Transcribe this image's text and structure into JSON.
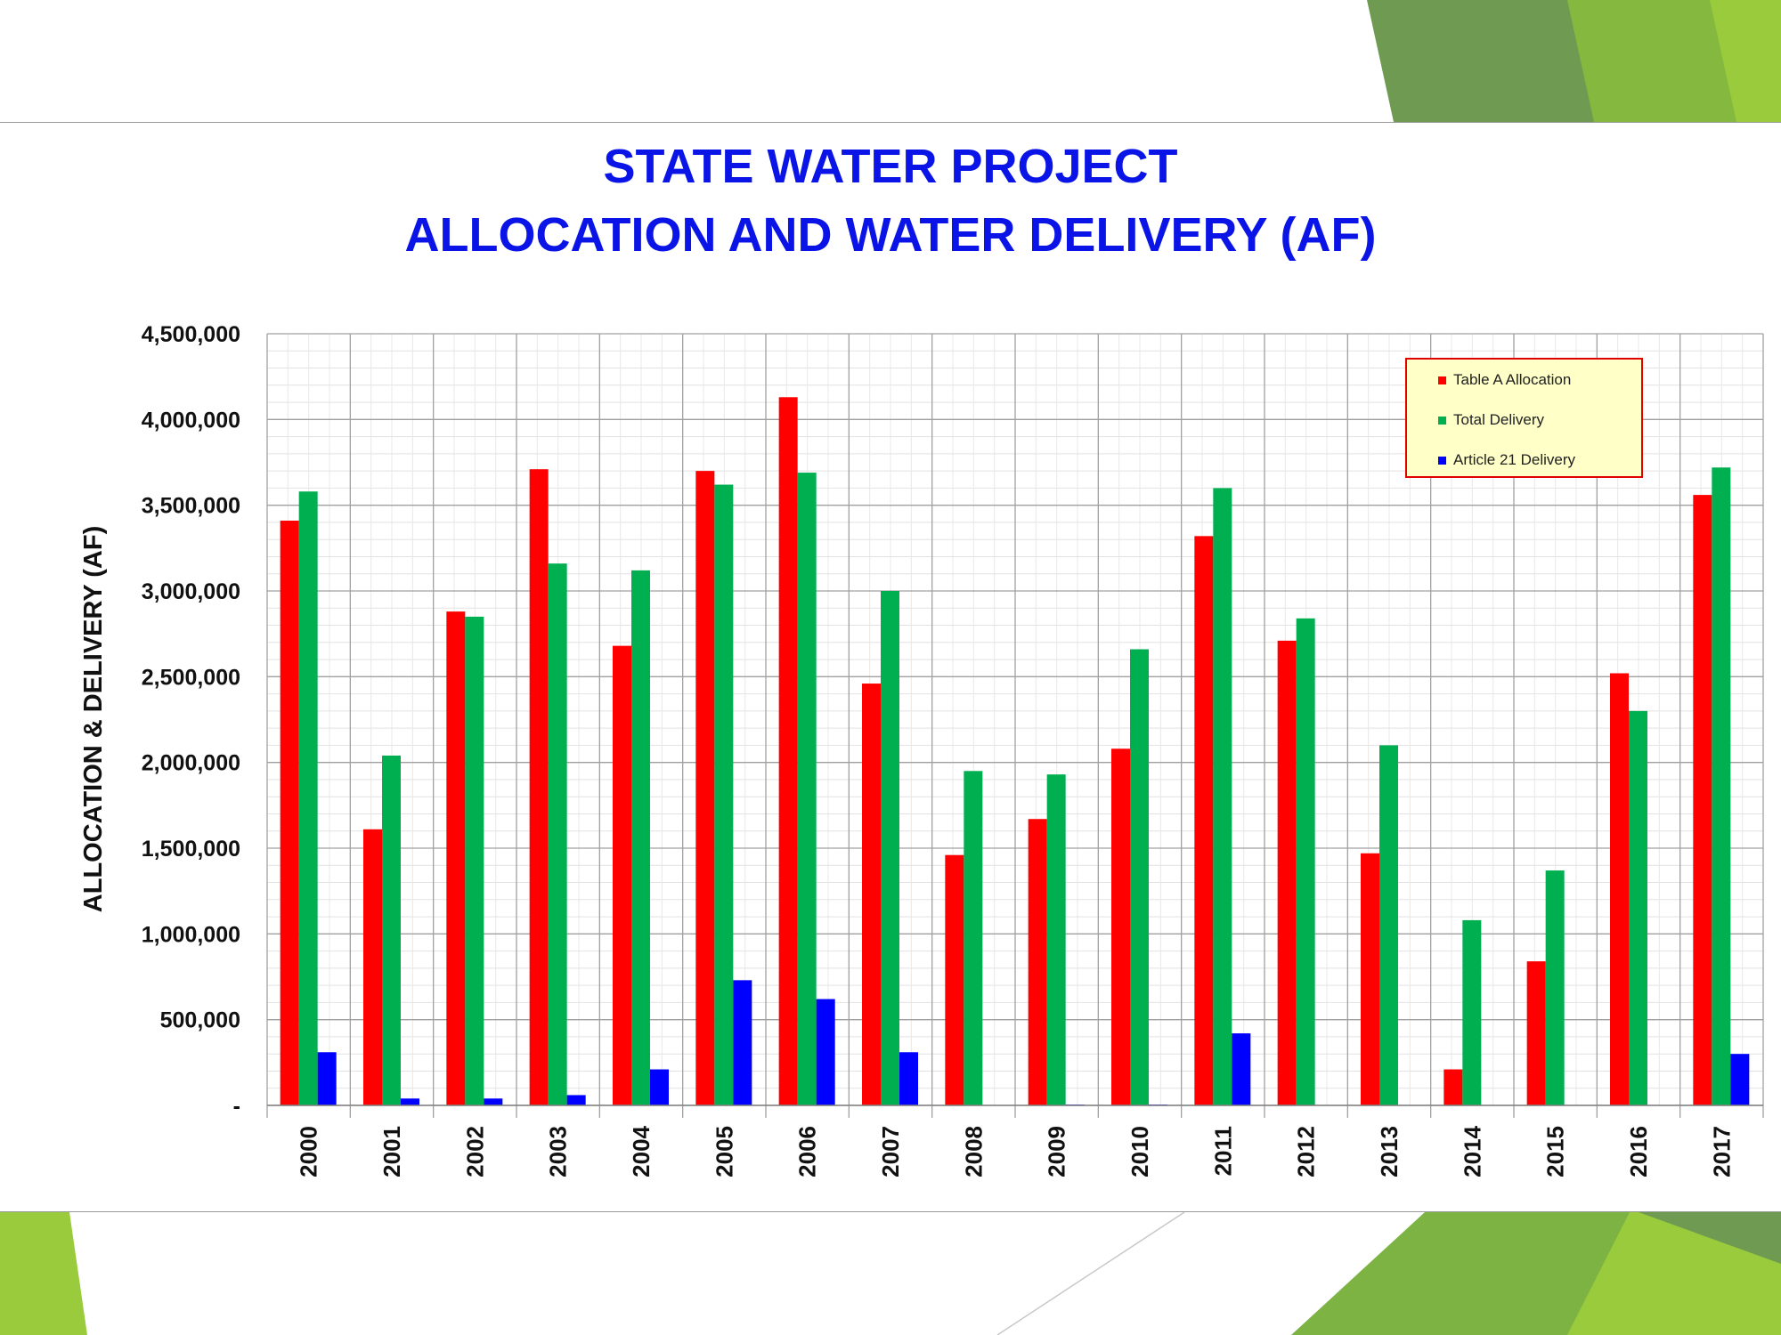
{
  "chart_data": {
    "type": "bar",
    "title": [
      "STATE WATER PROJECT",
      "ALLOCATION AND WATER  DELIVERY (AF)"
    ],
    "xlabel": "",
    "ylabel": "ALLOCATION & DELIVERY (AF)",
    "ylim": [
      0,
      4500000
    ],
    "yticks": [
      0,
      500000,
      1000000,
      1500000,
      2000000,
      2500000,
      3000000,
      3500000,
      4000000,
      4500000
    ],
    "ytick_labels": [
      "-",
      "500,000",
      "1,000,000",
      "1,500,000",
      "2,000,000",
      "2,500,000",
      "3,000,000",
      "3,500,000",
      "4,000,000",
      "4,500,000"
    ],
    "grid": true,
    "legend_position": "top-right",
    "categories": [
      "2000",
      "2001",
      "2002",
      "2003",
      "2004",
      "2005",
      "2006",
      "2007",
      "2008",
      "2009",
      "2010",
      "2011",
      "2012",
      "2013",
      "2014",
      "2015",
      "2016",
      "2017"
    ],
    "series": [
      {
        "name": "Table A Allocation",
        "color": "#ff0000",
        "values": [
          3410000,
          1610000,
          2880000,
          3710000,
          2680000,
          3700000,
          4130000,
          2460000,
          1460000,
          1670000,
          2080000,
          3320000,
          2710000,
          1470000,
          210000,
          840000,
          2520000,
          3560000
        ]
      },
      {
        "name": "Total Delivery",
        "color": "#00b050",
        "values": [
          3580000,
          2040000,
          2850000,
          3160000,
          3120000,
          3620000,
          3690000,
          3000000,
          1950000,
          1930000,
          2660000,
          3600000,
          2840000,
          2100000,
          1080000,
          1370000,
          2300000,
          3720000
        ]
      },
      {
        "name": "Article 21 Delivery",
        "color": "#0000ff",
        "values": [
          310000,
          40000,
          40000,
          60000,
          210000,
          730000,
          620000,
          310000,
          0,
          5000,
          5000,
          420000,
          0,
          0,
          0,
          0,
          0,
          300000
        ]
      }
    ]
  },
  "theme": {
    "title_color": "#0a14e6",
    "green_dark": "#6f9a52",
    "green_mid": "#7cb342",
    "green_light": "#9acb3c"
  }
}
